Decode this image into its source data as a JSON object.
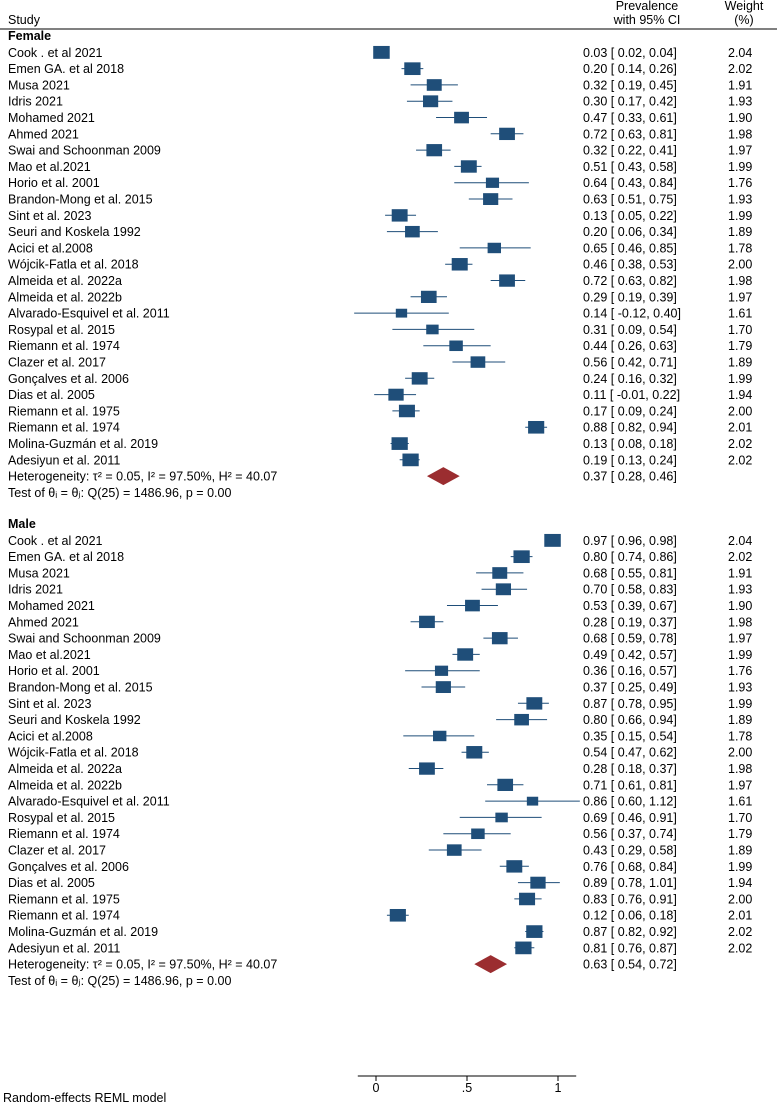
{
  "chart_data": {
    "type": "forest",
    "header": {
      "study": "Study",
      "effect_line1": "Prevalence",
      "effect_line2": "with 95% CI",
      "weight_line1": "Weight",
      "weight_line2": "(%)"
    },
    "xlim": [
      -0.1,
      1.1
    ],
    "xticks": [
      0,
      0.5,
      1
    ],
    "xtick_labels": [
      "0",
      ".5",
      "1"
    ],
    "model_note": "Random-effects REML model",
    "colors": {
      "marker": "#1f4e79",
      "diamond": "#9b2d30",
      "line": "#1f4e79"
    },
    "groups": [
      {
        "name": "Female",
        "studies": [
          {
            "study": "Cook . et al 2021",
            "est": 0.03,
            "lo": 0.02,
            "hi": 0.04,
            "ci_text": "0.03 [  0.02, 0.04]",
            "weight": "2.04"
          },
          {
            "study": "Emen GA. et al 2018",
            "est": 0.2,
            "lo": 0.14,
            "hi": 0.26,
            "ci_text": "0.20 [  0.14, 0.26]",
            "weight": "2.02"
          },
          {
            "study": "Musa 2021",
            "est": 0.32,
            "lo": 0.19,
            "hi": 0.45,
            "ci_text": "0.32 [  0.19, 0.45]",
            "weight": "1.91"
          },
          {
            "study": "Idris 2021",
            "est": 0.3,
            "lo": 0.17,
            "hi": 0.42,
            "ci_text": "0.30 [  0.17, 0.42]",
            "weight": "1.93"
          },
          {
            "study": "Mohamed 2021",
            "est": 0.47,
            "lo": 0.33,
            "hi": 0.61,
            "ci_text": "0.47 [  0.33, 0.61]",
            "weight": "1.90"
          },
          {
            "study": "Ahmed 2021",
            "est": 0.72,
            "lo": 0.63,
            "hi": 0.81,
            "ci_text": "0.72 [  0.63, 0.81]",
            "weight": "1.98"
          },
          {
            "study": "Swai and Schoonman 2009",
            "est": 0.32,
            "lo": 0.22,
            "hi": 0.41,
            "ci_text": "0.32 [  0.22, 0.41]",
            "weight": "1.97"
          },
          {
            "study": "Mao et al.2021",
            "est": 0.51,
            "lo": 0.43,
            "hi": 0.58,
            "ci_text": "0.51 [  0.43, 0.58]",
            "weight": "1.99"
          },
          {
            "study": "Horio et al. 2001",
            "est": 0.64,
            "lo": 0.43,
            "hi": 0.84,
            "ci_text": "0.64 [  0.43, 0.84]",
            "weight": "1.76"
          },
          {
            "study": "Brandon-Mong et al. 2015",
            "est": 0.63,
            "lo": 0.51,
            "hi": 0.75,
            "ci_text": "0.63 [  0.51, 0.75]",
            "weight": "1.93"
          },
          {
            "study": "Sint  et al. 2023",
            "est": 0.13,
            "lo": 0.05,
            "hi": 0.22,
            "ci_text": "0.13 [  0.05, 0.22]",
            "weight": "1.99"
          },
          {
            "study": "Seuri and Koskela 1992",
            "est": 0.2,
            "lo": 0.06,
            "hi": 0.34,
            "ci_text": "0.20 [  0.06, 0.34]",
            "weight": "1.89"
          },
          {
            "study": "Acici et al.2008",
            "est": 0.65,
            "lo": 0.46,
            "hi": 0.85,
            "ci_text": "0.65 [  0.46, 0.85]",
            "weight": "1.78"
          },
          {
            "study": "Wójcik-Fatla et al. 2018",
            "est": 0.46,
            "lo": 0.38,
            "hi": 0.53,
            "ci_text": "0.46 [  0.38, 0.53]",
            "weight": "2.00"
          },
          {
            "study": "Almeida et al. 2022a",
            "est": 0.72,
            "lo": 0.63,
            "hi": 0.82,
            "ci_text": "0.72 [  0.63, 0.82]",
            "weight": "1.98"
          },
          {
            "study": "Almeida et al. 2022b",
            "est": 0.29,
            "lo": 0.19,
            "hi": 0.39,
            "ci_text": "0.29 [  0.19, 0.39]",
            "weight": "1.97"
          },
          {
            "study": "Alvarado-Esquivel et al. 2011",
            "est": 0.14,
            "lo": -0.12,
            "hi": 0.4,
            "ci_text": "0.14 [ -0.12, 0.40]",
            "weight": "1.61"
          },
          {
            "study": "Rosypal et al. 2015",
            "est": 0.31,
            "lo": 0.09,
            "hi": 0.54,
            "ci_text": "0.31 [  0.09, 0.54]",
            "weight": "1.70"
          },
          {
            "study": "Riemann et al. 1974",
            "est": 0.44,
            "lo": 0.26,
            "hi": 0.63,
            "ci_text": "0.44 [  0.26, 0.63]",
            "weight": "1.79"
          },
          {
            "study": "Clazer et al. 2017",
            "est": 0.56,
            "lo": 0.42,
            "hi": 0.71,
            "ci_text": "0.56 [  0.42, 0.71]",
            "weight": "1.89"
          },
          {
            "study": "Gonçalves et al. 2006",
            "est": 0.24,
            "lo": 0.16,
            "hi": 0.32,
            "ci_text": "0.24 [  0.16, 0.32]",
            "weight": "1.99"
          },
          {
            "study": "Dias et al. 2005",
            "est": 0.11,
            "lo": -0.01,
            "hi": 0.22,
            "ci_text": "0.11 [ -0.01, 0.22]",
            "weight": "1.94"
          },
          {
            "study": "Riemann et al. 1975",
            "est": 0.17,
            "lo": 0.09,
            "hi": 0.24,
            "ci_text": "0.17 [  0.09, 0.24]",
            "weight": "2.00"
          },
          {
            "study": "Riemann et al. 1974",
            "est": 0.88,
            "lo": 0.82,
            "hi": 0.94,
            "ci_text": "0.88 [  0.82, 0.94]",
            "weight": "2.01"
          },
          {
            "study": "Molina-Guzmán et al. 2019",
            "est": 0.13,
            "lo": 0.08,
            "hi": 0.18,
            "ci_text": "0.13 [  0.08, 0.18]",
            "weight": "2.02"
          },
          {
            "study": "Adesiyun et al. 2011",
            "est": 0.19,
            "lo": 0.13,
            "hi": 0.24,
            "ci_text": "0.19 [  0.13, 0.24]",
            "weight": "2.02"
          }
        ],
        "pooled": {
          "label": "Heterogeneity: τ² = 0.05, I² = 97.50%, H² = 40.07",
          "est": 0.37,
          "lo": 0.28,
          "hi": 0.46,
          "ci_text": "0.37 [  0.28, 0.46]"
        },
        "test": "Test of θᵢ = θⱼ: Q(25) = 1486.96, p = 0.00"
      },
      {
        "name": "Male",
        "studies": [
          {
            "study": "Cook . et al 2021",
            "est": 0.97,
            "lo": 0.96,
            "hi": 0.98,
            "ci_text": "0.97 [  0.96, 0.98]",
            "weight": "2.04"
          },
          {
            "study": "Emen GA. et al 2018",
            "est": 0.8,
            "lo": 0.74,
            "hi": 0.86,
            "ci_text": "0.80 [  0.74, 0.86]",
            "weight": "2.02"
          },
          {
            "study": "Musa 2021",
            "est": 0.68,
            "lo": 0.55,
            "hi": 0.81,
            "ci_text": "0.68 [  0.55, 0.81]",
            "weight": "1.91"
          },
          {
            "study": "Idris 2021",
            "est": 0.7,
            "lo": 0.58,
            "hi": 0.83,
            "ci_text": "0.70 [  0.58, 0.83]",
            "weight": "1.93"
          },
          {
            "study": "Mohamed 2021",
            "est": 0.53,
            "lo": 0.39,
            "hi": 0.67,
            "ci_text": "0.53 [  0.39, 0.67]",
            "weight": "1.90"
          },
          {
            "study": "Ahmed 2021",
            "est": 0.28,
            "lo": 0.19,
            "hi": 0.37,
            "ci_text": "0.28 [  0.19, 0.37]",
            "weight": "1.98"
          },
          {
            "study": "Swai and Schoonman 2009",
            "est": 0.68,
            "lo": 0.59,
            "hi": 0.78,
            "ci_text": "0.68 [  0.59, 0.78]",
            "weight": "1.97"
          },
          {
            "study": "Mao et al.2021",
            "est": 0.49,
            "lo": 0.42,
            "hi": 0.57,
            "ci_text": "0.49 [  0.42, 0.57]",
            "weight": "1.99"
          },
          {
            "study": "Horio et al. 2001",
            "est": 0.36,
            "lo": 0.16,
            "hi": 0.57,
            "ci_text": "0.36 [  0.16, 0.57]",
            "weight": "1.76"
          },
          {
            "study": "Brandon-Mong et al. 2015",
            "est": 0.37,
            "lo": 0.25,
            "hi": 0.49,
            "ci_text": "0.37 [  0.25, 0.49]",
            "weight": "1.93"
          },
          {
            "study": "Sint  et al. 2023",
            "est": 0.87,
            "lo": 0.78,
            "hi": 0.95,
            "ci_text": "0.87 [  0.78, 0.95]",
            "weight": "1.99"
          },
          {
            "study": "Seuri and Koskela 1992",
            "est": 0.8,
            "lo": 0.66,
            "hi": 0.94,
            "ci_text": "0.80 [  0.66, 0.94]",
            "weight": "1.89"
          },
          {
            "study": "Acici et al.2008",
            "est": 0.35,
            "lo": 0.15,
            "hi": 0.54,
            "ci_text": "0.35 [  0.15, 0.54]",
            "weight": "1.78"
          },
          {
            "study": "Wójcik-Fatla et al. 2018",
            "est": 0.54,
            "lo": 0.47,
            "hi": 0.62,
            "ci_text": "0.54 [  0.47, 0.62]",
            "weight": "2.00"
          },
          {
            "study": "Almeida et al. 2022a",
            "est": 0.28,
            "lo": 0.18,
            "hi": 0.37,
            "ci_text": "0.28 [  0.18, 0.37]",
            "weight": "1.98"
          },
          {
            "study": "Almeida et al. 2022b",
            "est": 0.71,
            "lo": 0.61,
            "hi": 0.81,
            "ci_text": "0.71 [  0.61, 0.81]",
            "weight": "1.97"
          },
          {
            "study": "Alvarado-Esquivel et al. 2011",
            "est": 0.86,
            "lo": 0.6,
            "hi": 1.12,
            "ci_text": "0.86 [  0.60, 1.12]",
            "weight": "1.61"
          },
          {
            "study": "Rosypal et al. 2015",
            "est": 0.69,
            "lo": 0.46,
            "hi": 0.91,
            "ci_text": "0.69 [  0.46, 0.91]",
            "weight": "1.70"
          },
          {
            "study": "Riemann et al. 1974",
            "est": 0.56,
            "lo": 0.37,
            "hi": 0.74,
            "ci_text": "0.56 [  0.37, 0.74]",
            "weight": "1.79"
          },
          {
            "study": "Clazer et al. 2017",
            "est": 0.43,
            "lo": 0.29,
            "hi": 0.58,
            "ci_text": "0.43 [  0.29, 0.58]",
            "weight": "1.89"
          },
          {
            "study": "Gonçalves et al. 2006",
            "est": 0.76,
            "lo": 0.68,
            "hi": 0.84,
            "ci_text": "0.76 [  0.68, 0.84]",
            "weight": "1.99"
          },
          {
            "study": "Dias et al. 2005",
            "est": 0.89,
            "lo": 0.78,
            "hi": 1.01,
            "ci_text": "0.89 [  0.78, 1.01]",
            "weight": "1.94"
          },
          {
            "study": "Riemann et al. 1975",
            "est": 0.83,
            "lo": 0.76,
            "hi": 0.91,
            "ci_text": "0.83 [  0.76, 0.91]",
            "weight": "2.00"
          },
          {
            "study": "Riemann et al. 1974",
            "est": 0.12,
            "lo": 0.06,
            "hi": 0.18,
            "ci_text": "0.12 [  0.06, 0.18]",
            "weight": "2.01"
          },
          {
            "study": "Molina-Guzmán et al. 2019",
            "est": 0.87,
            "lo": 0.82,
            "hi": 0.92,
            "ci_text": "0.87 [  0.82, 0.92]",
            "weight": "2.02"
          },
          {
            "study": "Adesiyun et al. 2011",
            "est": 0.81,
            "lo": 0.76,
            "hi": 0.87,
            "ci_text": "0.81 [  0.76, 0.87]",
            "weight": "2.02"
          }
        ],
        "pooled": {
          "label": "Heterogeneity: τ² = 0.05, I² = 97.50%, H² = 40.07",
          "est": 0.63,
          "lo": 0.54,
          "hi": 0.72,
          "ci_text": "0.63 [  0.54, 0.72]"
        },
        "test": "Test of θᵢ = θⱼ: Q(25) = 1486.96, p = 0.00"
      }
    ]
  }
}
